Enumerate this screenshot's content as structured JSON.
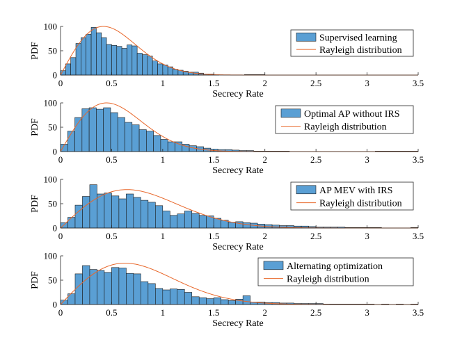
{
  "colors": {
    "bar_fill": "#5a9fd4",
    "bar_edge": "#1a1a1a",
    "curve": "#e8672a",
    "axis": "#262626"
  },
  "chart_data": [
    {
      "type": "bar",
      "subtype": "histogram",
      "xlabel": "Secrecy Rate",
      "ylabel": "PDF",
      "xlim": [
        0,
        3.5
      ],
      "ylim": [
        0,
        100
      ],
      "xticks": [
        0,
        0.5,
        1,
        1.5,
        2,
        2.5,
        3,
        3.5
      ],
      "xtick_labels": [
        "0",
        "0.5",
        "1",
        "1.5",
        "2",
        "2.5",
        "3",
        "3.5"
      ],
      "yticks": [
        0,
        50,
        100
      ],
      "ytick_labels": [
        "0",
        "50",
        "100"
      ],
      "legend_location": "top-right",
      "bin_width": 0.05,
      "series": [
        {
          "name": "Supervised learning",
          "type": "histogram",
          "bin_start": 0,
          "values": [
            9,
            23,
            36,
            65,
            77,
            84,
            98,
            87,
            77,
            63,
            61,
            59,
            55,
            62,
            60,
            45,
            42,
            39,
            29,
            23,
            21,
            17,
            12,
            10,
            8,
            6,
            6,
            4,
            2,
            2,
            1,
            0,
            0,
            0,
            0,
            0,
            1,
            1,
            1,
            1,
            0,
            0,
            0,
            0,
            0,
            0,
            0,
            0,
            0,
            0,
            0,
            0,
            0,
            0,
            0,
            0,
            0,
            0,
            0,
            0,
            0,
            0,
            0,
            0,
            0,
            0,
            0,
            0,
            0,
            0
          ]
        },
        {
          "name": "Rayleigh distribution",
          "type": "curve",
          "sigma": 0.42,
          "peak": 100
        }
      ]
    },
    {
      "type": "bar",
      "subtype": "histogram",
      "xlabel": "Secrecy Rate",
      "ylabel": "PDF",
      "xlim": [
        0,
        3.5
      ],
      "ylim": [
        0,
        100
      ],
      "xticks": [
        0,
        0.5,
        1,
        1.5,
        2,
        2.5,
        3,
        3.5
      ],
      "xtick_labels": [
        "0",
        "0.5",
        "1",
        "1.5",
        "2",
        "2.5",
        "3",
        "3.5"
      ],
      "yticks": [
        0,
        50,
        100
      ],
      "ytick_labels": [
        "0",
        "50",
        "100"
      ],
      "legend_location": "top-right",
      "bin_width": 0.07,
      "series": [
        {
          "name": "Optimal AP without IRS",
          "type": "histogram",
          "bin_start": 0,
          "values": [
            15,
            42,
            70,
            88,
            90,
            87,
            90,
            80,
            70,
            60,
            55,
            45,
            42,
            33,
            25,
            20,
            20,
            15,
            12,
            10,
            7,
            5,
            4,
            4,
            3,
            2,
            2,
            1,
            1,
            1,
            1,
            1,
            0,
            0,
            0,
            0,
            0,
            0,
            0,
            0,
            0,
            0,
            0,
            0,
            1,
            1,
            1,
            1,
            1,
            1
          ]
        },
        {
          "name": "Rayleigh distribution",
          "type": "curve",
          "sigma": 0.45,
          "peak": 100
        }
      ]
    },
    {
      "type": "bar",
      "subtype": "histogram",
      "xlabel": "Secrecy Rate",
      "ylabel": "PDF",
      "xlim": [
        0,
        3.5
      ],
      "ylim": [
        0,
        100
      ],
      "xticks": [
        0,
        0.5,
        1,
        1.5,
        2,
        2.5,
        3,
        3.5
      ],
      "xtick_labels": [
        "0",
        "0.5",
        "1",
        "1.5",
        "2",
        "2.5",
        "3",
        "3.5"
      ],
      "yticks": [
        0,
        50,
        100
      ],
      "ytick_labels": [
        "0",
        "50",
        "100"
      ],
      "legend_location": "top-right",
      "bin_width": 0.0714,
      "series": [
        {
          "name": "AP MEV with IRS",
          "type": "histogram",
          "bin_start": 0,
          "values": [
            11,
            22,
            47,
            65,
            89,
            70,
            72,
            66,
            60,
            70,
            63,
            57,
            53,
            46,
            35,
            26,
            29,
            35,
            30,
            26,
            25,
            20,
            16,
            12,
            13,
            11,
            10,
            8,
            7,
            6,
            5,
            5,
            4,
            4,
            3,
            2,
            2,
            2,
            2,
            1,
            1,
            1,
            1,
            1,
            0,
            0,
            0,
            0,
            1,
            0
          ]
        },
        {
          "name": "Rayleigh distribution",
          "type": "curve",
          "sigma": 0.65,
          "peak": 79
        }
      ]
    },
    {
      "type": "bar",
      "subtype": "histogram",
      "xlabel": "Secrecy Rate",
      "ylabel": "PDF",
      "xlim": [
        0,
        3.5
      ],
      "ylim": [
        0,
        100
      ],
      "xticks": [
        0,
        0.5,
        1,
        1.5,
        2,
        2.5,
        3,
        3.5
      ],
      "xtick_labels": [
        "0",
        "0.5",
        "1",
        "1.5",
        "2",
        "2.5",
        "3",
        "3.5"
      ],
      "yticks": [
        0,
        50,
        100
      ],
      "ytick_labels": [
        "0",
        "50",
        "100"
      ],
      "legend_location": "top-right",
      "bin_width": 0.0714,
      "series": [
        {
          "name": "Alternating optimization",
          "type": "histogram",
          "bin_start": 0,
          "values": [
            9,
            22,
            63,
            80,
            72,
            70,
            66,
            76,
            75,
            64,
            63,
            47,
            43,
            33,
            30,
            32,
            31,
            25,
            16,
            14,
            12,
            14,
            10,
            8,
            11,
            18,
            5,
            5,
            4,
            4,
            3,
            3,
            2,
            2,
            2,
            2,
            1,
            1,
            1,
            1,
            1,
            1,
            1,
            0,
            1,
            0,
            1,
            0,
            1,
            0
          ]
        },
        {
          "name": "Rayleigh distribution",
          "type": "curve",
          "sigma": 0.63,
          "peak": 85
        }
      ]
    }
  ]
}
